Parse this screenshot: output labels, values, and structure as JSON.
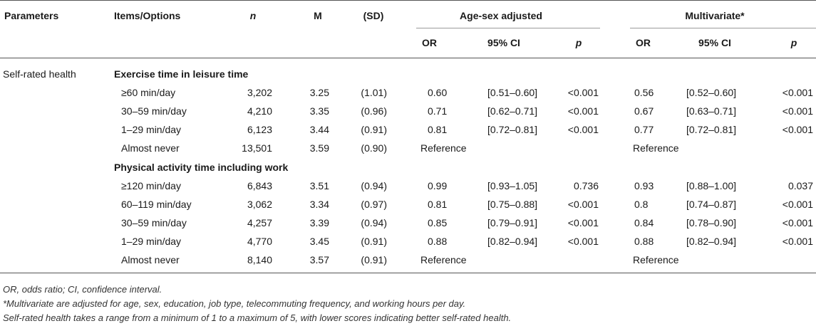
{
  "headers": {
    "parameters": "Parameters",
    "items": "Items/Options",
    "n": "n",
    "m": "M",
    "sd": "(SD)",
    "age_sex": "Age-sex adjusted",
    "multivariate": "Multivariate*",
    "or": "OR",
    "ci": "95% CI",
    "p": "p"
  },
  "parameter": "Self-rated health",
  "groups": [
    {
      "title": "Exercise time in leisure time",
      "rows": [
        {
          "item": "≥60 min/day",
          "n": "3,202",
          "m": "3.25",
          "sd": "(1.01)",
          "or1": "0.60",
          "ci1": "[0.51–0.60]",
          "p1": "<0.001",
          "or2": "0.56",
          "ci2": "[0.52–0.60]",
          "p2": "<0.001"
        },
        {
          "item": "30–59 min/day",
          "n": "4,210",
          "m": "3.35",
          "sd": "(0.96)",
          "or1": "0.71",
          "ci1": "[0.62–0.71]",
          "p1": "<0.001",
          "or2": "0.67",
          "ci2": "[0.63–0.71]",
          "p2": "<0.001"
        },
        {
          "item": "1–29 min/day",
          "n": "6,123",
          "m": "3.44",
          "sd": "(0.91)",
          "or1": "0.81",
          "ci1": "[0.72–0.81]",
          "p1": "<0.001",
          "or2": "0.77",
          "ci2": "[0.72–0.81]",
          "p2": "<0.001"
        },
        {
          "item": "Almost never",
          "n": "13,501",
          "m": "3.59",
          "sd": "(0.90)",
          "ref1": "Reference",
          "ref2": "Reference"
        }
      ]
    },
    {
      "title": "Physical activity time including work",
      "rows": [
        {
          "item": "≥120 min/day",
          "n": "6,843",
          "m": "3.51",
          "sd": "(0.94)",
          "or1": "0.99",
          "ci1": "[0.93–1.05]",
          "p1": "0.736",
          "or2": "0.93",
          "ci2": "[0.88–1.00]",
          "p2": "0.037"
        },
        {
          "item": "60–119 min/day",
          "n": "3,062",
          "m": "3.34",
          "sd": "(0.97)",
          "or1": "0.81",
          "ci1": "[0.75–0.88]",
          "p1": "<0.001",
          "or2": "0.8",
          "ci2": "[0.74–0.87]",
          "p2": "<0.001"
        },
        {
          "item": "30–59 min/day",
          "n": "4,257",
          "m": "3.39",
          "sd": "(0.94)",
          "or1": "0.85",
          "ci1": "[0.79–0.91]",
          "p1": "<0.001",
          "or2": "0.84",
          "ci2": "[0.78–0.90]",
          "p2": "<0.001"
        },
        {
          "item": "1–29 min/day",
          "n": "4,770",
          "m": "3.45",
          "sd": "(0.91)",
          "or1": "0.88",
          "ci1": "[0.82–0.94]",
          "p1": "<0.001",
          "or2": "0.88",
          "ci2": "[0.82–0.94]",
          "p2": "<0.001"
        },
        {
          "item": "Almost never",
          "n": "8,140",
          "m": "3.57",
          "sd": "(0.91)",
          "ref1": "Reference",
          "ref2": "Reference"
        }
      ]
    }
  ],
  "notes": [
    "OR, odds ratio; CI, confidence interval.",
    "*Multivariate are adjusted for age, sex, education, job type, telecommuting frequency, and working hours per day.",
    "Self-rated health takes a range from a minimum of 1 to a maximum of 5, with lower scores indicating better self-rated health."
  ]
}
